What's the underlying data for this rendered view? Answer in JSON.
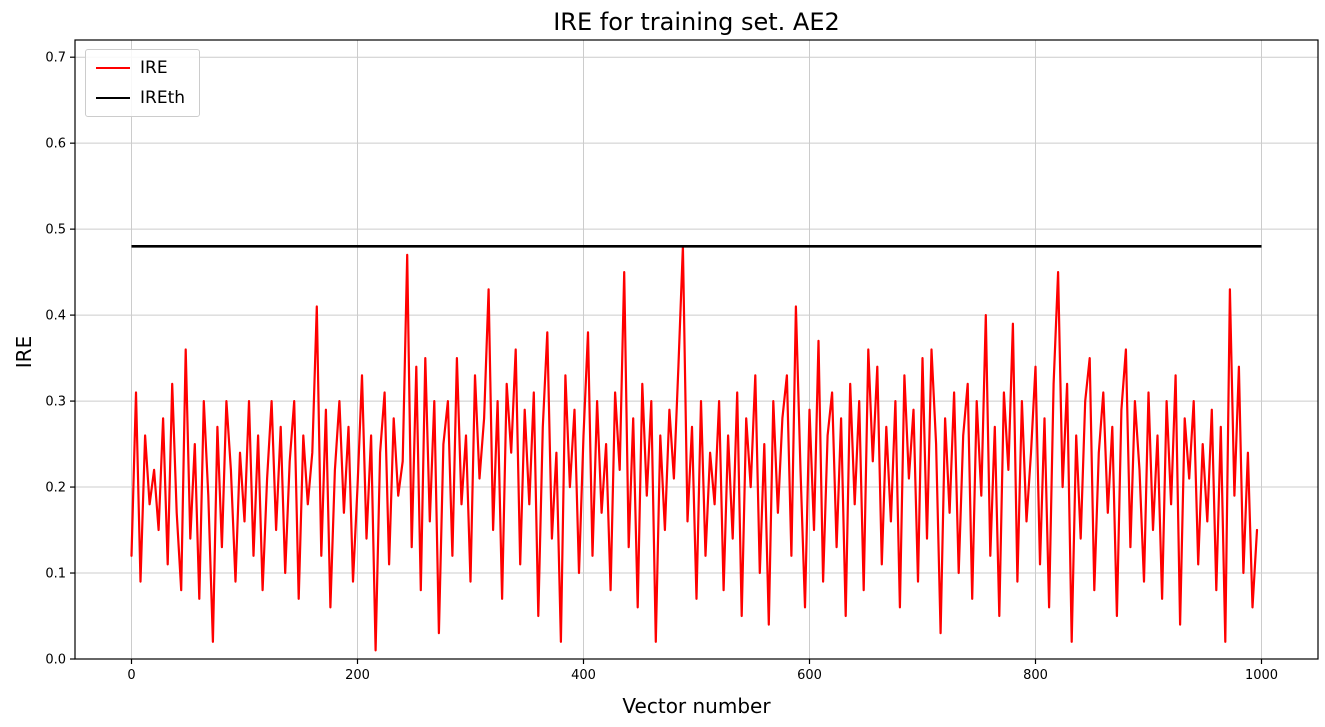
{
  "chart_data": {
    "type": "line",
    "title": "IRE for training set. AE2",
    "xlabel": "Vector number",
    "ylabel": "IRE",
    "xlim": [
      -50,
      1050
    ],
    "ylim": [
      0,
      0.72
    ],
    "x_ticks": [
      0,
      200,
      400,
      600,
      800,
      1000
    ],
    "y_ticks": [
      0.0,
      0.1,
      0.2,
      0.3,
      0.4,
      0.5,
      0.6,
      0.7
    ],
    "grid": true,
    "grid_color": "#cccccc",
    "legend": {
      "position": "upper-left",
      "entries": [
        {
          "label": "IRE",
          "color": "#ff0000"
        },
        {
          "label": "IREth",
          "color": "#000000"
        }
      ]
    },
    "threshold": {
      "name": "IREth",
      "value": 0.48,
      "color": "#000000",
      "x_from": 0,
      "x_to": 1000
    },
    "series": [
      {
        "name": "IRE",
        "color": "#ff0000",
        "x_start": 0,
        "x_step": 4,
        "values": [
          0.12,
          0.31,
          0.09,
          0.26,
          0.18,
          0.22,
          0.15,
          0.28,
          0.11,
          0.32,
          0.17,
          0.08,
          0.36,
          0.14,
          0.25,
          0.07,
          0.3,
          0.19,
          0.02,
          0.27,
          0.13,
          0.3,
          0.22,
          0.09,
          0.24,
          0.16,
          0.3,
          0.12,
          0.26,
          0.08,
          0.21,
          0.3,
          0.15,
          0.27,
          0.1,
          0.23,
          0.3,
          0.07,
          0.26,
          0.18,
          0.24,
          0.41,
          0.12,
          0.29,
          0.06,
          0.22,
          0.3,
          0.17,
          0.27,
          0.09,
          0.2,
          0.33,
          0.14,
          0.26,
          0.01,
          0.24,
          0.31,
          0.11,
          0.28,
          0.19,
          0.23,
          0.47,
          0.13,
          0.34,
          0.08,
          0.35,
          0.16,
          0.3,
          0.03,
          0.25,
          0.3,
          0.12,
          0.35,
          0.18,
          0.26,
          0.09,
          0.33,
          0.21,
          0.28,
          0.43,
          0.15,
          0.3,
          0.07,
          0.32,
          0.24,
          0.36,
          0.11,
          0.29,
          0.18,
          0.31,
          0.05,
          0.27,
          0.38,
          0.14,
          0.24,
          0.02,
          0.33,
          0.2,
          0.29,
          0.1,
          0.26,
          0.38,
          0.12,
          0.3,
          0.17,
          0.25,
          0.08,
          0.31,
          0.22,
          0.45,
          0.13,
          0.28,
          0.06,
          0.32,
          0.19,
          0.3,
          0.02,
          0.26,
          0.15,
          0.29,
          0.21,
          0.34,
          0.48,
          0.16,
          0.27,
          0.07,
          0.3,
          0.12,
          0.24,
          0.18,
          0.3,
          0.08,
          0.26,
          0.14,
          0.31,
          0.05,
          0.28,
          0.2,
          0.33,
          0.1,
          0.25,
          0.04,
          0.3,
          0.17,
          0.28,
          0.33,
          0.12,
          0.41,
          0.22,
          0.06,
          0.29,
          0.15,
          0.37,
          0.09,
          0.26,
          0.31,
          0.13,
          0.28,
          0.05,
          0.32,
          0.18,
          0.3,
          0.08,
          0.36,
          0.23,
          0.34,
          0.11,
          0.27,
          0.16,
          0.3,
          0.06,
          0.33,
          0.21,
          0.29,
          0.09,
          0.35,
          0.14,
          0.36,
          0.25,
          0.03,
          0.28,
          0.17,
          0.31,
          0.1,
          0.26,
          0.32,
          0.07,
          0.3,
          0.19,
          0.4,
          0.12,
          0.27,
          0.05,
          0.31,
          0.22,
          0.39,
          0.09,
          0.3,
          0.16,
          0.24,
          0.34,
          0.11,
          0.28,
          0.06,
          0.32,
          0.45,
          0.2,
          0.32,
          0.02,
          0.26,
          0.14,
          0.3,
          0.35,
          0.08,
          0.24,
          0.31,
          0.17,
          0.27,
          0.05,
          0.29,
          0.36,
          0.13,
          0.3,
          0.22,
          0.09,
          0.31,
          0.15,
          0.26,
          0.07,
          0.3,
          0.18,
          0.33,
          0.04,
          0.28,
          0.21,
          0.3,
          0.11,
          0.25,
          0.16,
          0.29,
          0.08,
          0.27,
          0.02,
          0.43,
          0.19,
          0.34,
          0.1,
          0.24,
          0.06,
          0.15
        ]
      }
    ]
  }
}
